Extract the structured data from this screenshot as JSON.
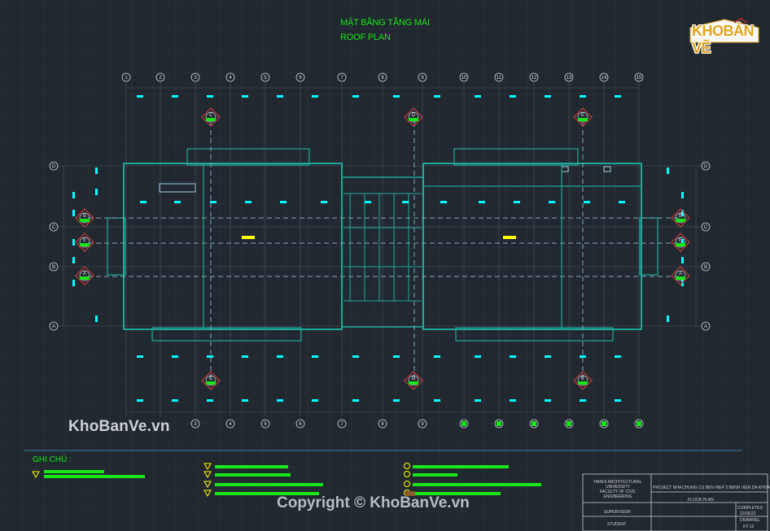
{
  "title": {
    "vn": "MẶT BẰNG TẦNG MÁI",
    "en": "ROOF PLAN"
  },
  "logo": {
    "text_a": "KHO",
    "text_b": "BẢN VẼ"
  },
  "watermark": {
    "site": "KhoBanVe.vn",
    "copyright": "Copyright © KhoBanVe.vn"
  },
  "notes": {
    "label": "GHI CHÚ :"
  },
  "grid": {
    "columns": [
      "1",
      "2",
      "3",
      "4",
      "5",
      "6",
      "7",
      "8",
      "9",
      "10",
      "11",
      "12",
      "13",
      "14",
      "15"
    ],
    "columns_bottom": [
      "3",
      "4",
      "5",
      "6",
      "7",
      "8",
      "9"
    ],
    "rows": [
      "D",
      "C",
      "B",
      "A"
    ]
  },
  "markers": {
    "side": [
      "B",
      "E",
      "A"
    ],
    "top": [
      "C",
      "D",
      "E"
    ],
    "bottom": [
      "C",
      "D",
      "E"
    ]
  },
  "title_block": {
    "school_1": "HANOI ARCHITECTURAL",
    "school_2": "UNIVERSITY",
    "school_3": "FACULTY OF CIVIL ENGINEERING",
    "project": "PROJECT NHA CHUNG CU BEN HIEP 3 BENH VIEN DA KHOA",
    "drawing": "FLOOR PLAN",
    "supervisor": "SUPERVISOR",
    "student": "STUDENT",
    "completed": "COMPLETED",
    "date": "22/06/22",
    "drawing_no": "DRAWING",
    "sheet": "KT-12"
  },
  "colors": {
    "background": "#212830",
    "grid": "#2c3440",
    "wall": "#1fa89a",
    "dim": "#00ffff",
    "green": "#19e619",
    "yellow": "#ffff00",
    "marker": "#c83c3c"
  }
}
